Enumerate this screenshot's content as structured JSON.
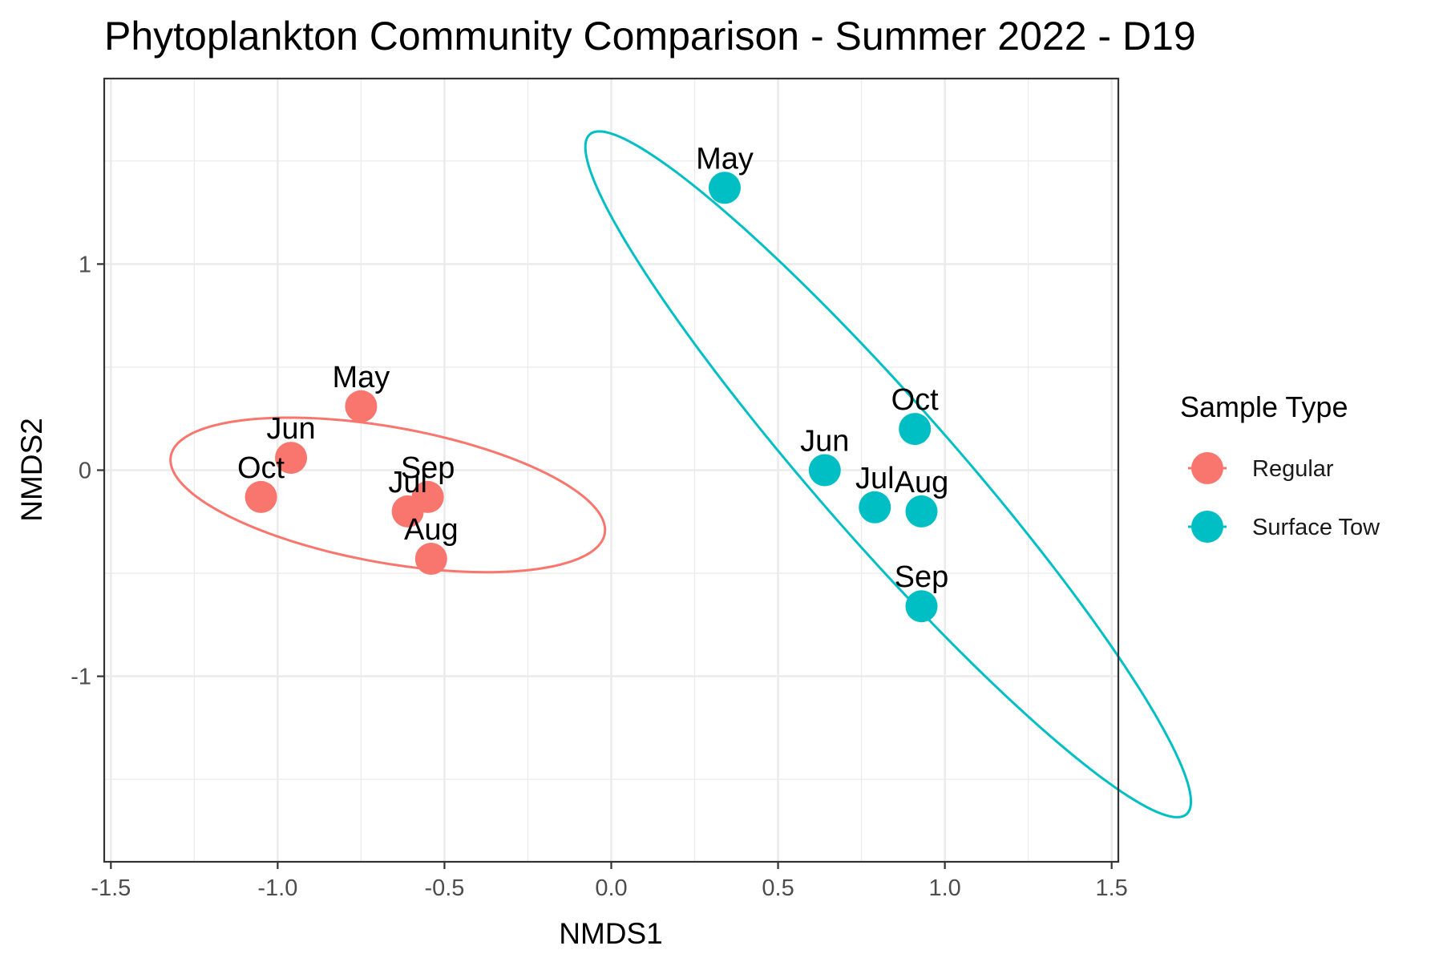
{
  "chart_data": {
    "type": "scatter",
    "title": "Phytoplankton Community Comparison - Summer 2022 - D19",
    "xlabel": "NMDS1",
    "ylabel": "NMDS2",
    "xlim": [
      -1.52,
      1.52
    ],
    "ylim": [
      -1.9,
      1.9
    ],
    "x_ticks": [
      -1.5,
      -1.0,
      -0.5,
      0.0,
      0.5,
      1.0,
      1.5
    ],
    "x_tick_labels": [
      "-1.5",
      "-1.0",
      "-0.5",
      "0.0",
      "0.5",
      "1.0",
      "1.5"
    ],
    "y_ticks": [
      -1,
      0,
      1
    ],
    "y_tick_labels": [
      "-1",
      "0",
      "1"
    ],
    "grid": true,
    "legend": {
      "title": "Sample Type",
      "position": "right"
    },
    "series": [
      {
        "name": "Regular",
        "color": "#F8766D",
        "points": [
          {
            "label": "May",
            "x": -0.75,
            "y": 0.31
          },
          {
            "label": "Jun",
            "x": -0.96,
            "y": 0.06
          },
          {
            "label": "Oct",
            "x": -1.05,
            "y": -0.13
          },
          {
            "label": "Jul",
            "x": -0.61,
            "y": -0.2
          },
          {
            "label": "Sep",
            "x": -0.55,
            "y": -0.13
          },
          {
            "label": "Aug",
            "x": -0.54,
            "y": -0.43
          }
        ],
        "ellipse": {
          "cx": -0.67,
          "cy": -0.12,
          "rx": 0.68,
          "ry": 0.32,
          "angle_deg": -19
        }
      },
      {
        "name": "Surface Tow",
        "color": "#00BFC4",
        "points": [
          {
            "label": "May",
            "x": 0.34,
            "y": 1.37
          },
          {
            "label": "Oct",
            "x": 0.91,
            "y": 0.2
          },
          {
            "label": "Jun",
            "x": 0.64,
            "y": 0.0
          },
          {
            "label": "Jul",
            "x": 0.79,
            "y": -0.18
          },
          {
            "label": "Aug",
            "x": 0.93,
            "y": -0.2
          },
          {
            "label": "Sep",
            "x": 0.93,
            "y": -0.66
          }
        ],
        "ellipse": {
          "cx": 0.83,
          "cy": -0.02,
          "rx": 1.88,
          "ry": 0.24,
          "angle_deg": -62
        }
      }
    ]
  }
}
